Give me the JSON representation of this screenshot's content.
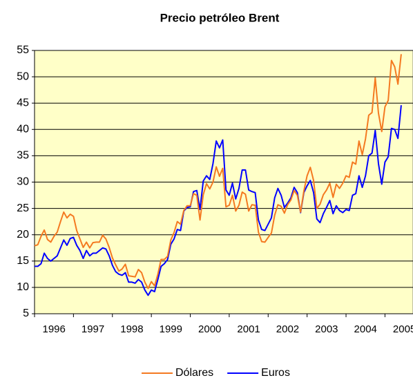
{
  "chart_data": {
    "type": "line",
    "title": "Precio petróleo Brent",
    "x": [
      1996,
      1996.083,
      1996.167,
      1996.25,
      1996.333,
      1996.417,
      1996.5,
      1996.583,
      1996.667,
      1996.75,
      1996.833,
      1996.917,
      1997,
      1997.083,
      1997.167,
      1997.25,
      1997.333,
      1997.417,
      1997.5,
      1997.583,
      1997.667,
      1997.75,
      1997.833,
      1997.917,
      1998,
      1998.083,
      1998.167,
      1998.25,
      1998.333,
      1998.417,
      1998.5,
      1998.583,
      1998.667,
      1998.75,
      1998.833,
      1998.917,
      1999,
      1999.083,
      1999.167,
      1999.25,
      1999.333,
      1999.417,
      1999.5,
      1999.583,
      1999.667,
      1999.75,
      1999.833,
      1999.917,
      2000,
      2000.083,
      2000.167,
      2000.25,
      2000.333,
      2000.417,
      2000.5,
      2000.583,
      2000.667,
      2000.75,
      2000.833,
      2000.917,
      2001,
      2001.083,
      2001.167,
      2001.25,
      2001.333,
      2001.417,
      2001.5,
      2001.583,
      2001.667,
      2001.75,
      2001.833,
      2001.917,
      2002,
      2002.083,
      2002.167,
      2002.25,
      2002.333,
      2002.417,
      2002.5,
      2002.583,
      2002.667,
      2002.75,
      2002.833,
      2002.917,
      2003,
      2003.083,
      2003.167,
      2003.25,
      2003.333,
      2003.417,
      2003.5,
      2003.583,
      2003.667,
      2003.75,
      2003.833,
      2003.917,
      2004,
      2004.083,
      2004.167,
      2004.25,
      2004.333,
      2004.417,
      2004.5,
      2004.583,
      2004.667,
      2004.75,
      2004.833,
      2004.917,
      2005,
      2005.083,
      2005.167,
      2005.25,
      2005.333,
      2005.417
    ],
    "series": [
      {
        "name": "Dólares",
        "color": "#f47920",
        "values": [
          17.9,
          18.1,
          19.7,
          20.9,
          19.1,
          18.6,
          19.7,
          20.5,
          22.5,
          24.3,
          23.2,
          23.9,
          23.5,
          20.8,
          19.2,
          17.6,
          18.6,
          17.5,
          18.5,
          18.6,
          18.6,
          19.9,
          19.2,
          17.6,
          15.6,
          14.3,
          13.1,
          13.5,
          14.4,
          12.2,
          12.1,
          12.0,
          13.4,
          12.8,
          11.0,
          9.8,
          11.1,
          10.3,
          12.5,
          15.3,
          15.3,
          15.9,
          19.0,
          20.4,
          22.5,
          22.0,
          24.6,
          25.5,
          25.5,
          27.8,
          27.5,
          22.8,
          27.6,
          29.7,
          28.7,
          30.0,
          32.9,
          31.1,
          32.6,
          25.3,
          25.6,
          27.5,
          24.5,
          25.6,
          28.1,
          27.7,
          24.5,
          25.7,
          25.6,
          20.5,
          18.7,
          18.6,
          19.5,
          20.3,
          23.7,
          25.7,
          25.4,
          24.1,
          25.7,
          26.6,
          28.4,
          27.5,
          24.3,
          28.3,
          31.2,
          32.8,
          30.3,
          25.0,
          25.8,
          27.6,
          28.5,
          29.8,
          27.1,
          29.6,
          28.8,
          29.8,
          31.2,
          30.9,
          33.8,
          33.4,
          37.8,
          35.2,
          38.2,
          42.7,
          43.2,
          49.8,
          43.1,
          39.6,
          44.3,
          45.5,
          53.1,
          51.9,
          48.6,
          54.3
        ]
      },
      {
        "name": "Euros",
        "color": "#0000ff",
        "values": [
          14,
          14,
          14.5,
          16.5,
          15.5,
          15,
          15.5,
          16,
          17.5,
          19,
          18,
          19.3,
          19.5,
          18,
          17,
          15.5,
          17,
          16,
          16.5,
          16.5,
          17,
          17.5,
          17.3,
          16,
          14.2,
          13,
          12.5,
          12.3,
          12.8,
          11,
          11,
          10.8,
          11.5,
          11,
          9.5,
          8.5,
          9.5,
          9.2,
          11.5,
          14,
          14.5,
          15.3,
          18.2,
          19.2,
          21,
          20.8,
          24.5,
          25.2,
          25.3,
          28.2,
          28.4,
          24.8,
          30.2,
          31.2,
          30.5,
          33.5,
          37.8,
          36.5,
          38,
          28.5,
          27.5,
          29.8,
          26.8,
          28.8,
          32.3,
          32.3,
          28.5,
          28.2,
          28,
          22.8,
          21,
          20.8,
          22,
          23.2,
          27,
          28.8,
          27.5,
          25.2,
          26,
          27,
          29,
          28,
          24.2,
          28,
          29.3,
          30.3,
          28,
          23,
          22.3,
          24,
          25.2,
          26.5,
          24,
          25.5,
          24.6,
          24.2,
          24.8,
          24.6,
          27.5,
          27.8,
          31.2,
          29,
          31.2,
          35,
          35.5,
          39.8,
          33.5,
          29.6,
          33.8,
          34.8,
          40.2,
          40,
          38.3,
          44.6
        ]
      }
    ],
    "xlim": [
      1996,
      2005.72
    ],
    "xticks": [
      1996,
      1997,
      1998,
      1999,
      2000,
      2001,
      2002,
      2003,
      2004,
      2005
    ],
    "ylim": [
      5,
      55
    ],
    "yticks": [
      5,
      10,
      15,
      20,
      25,
      30,
      35,
      40,
      45,
      50,
      55
    ],
    "grid": true,
    "legend": "bottom"
  }
}
